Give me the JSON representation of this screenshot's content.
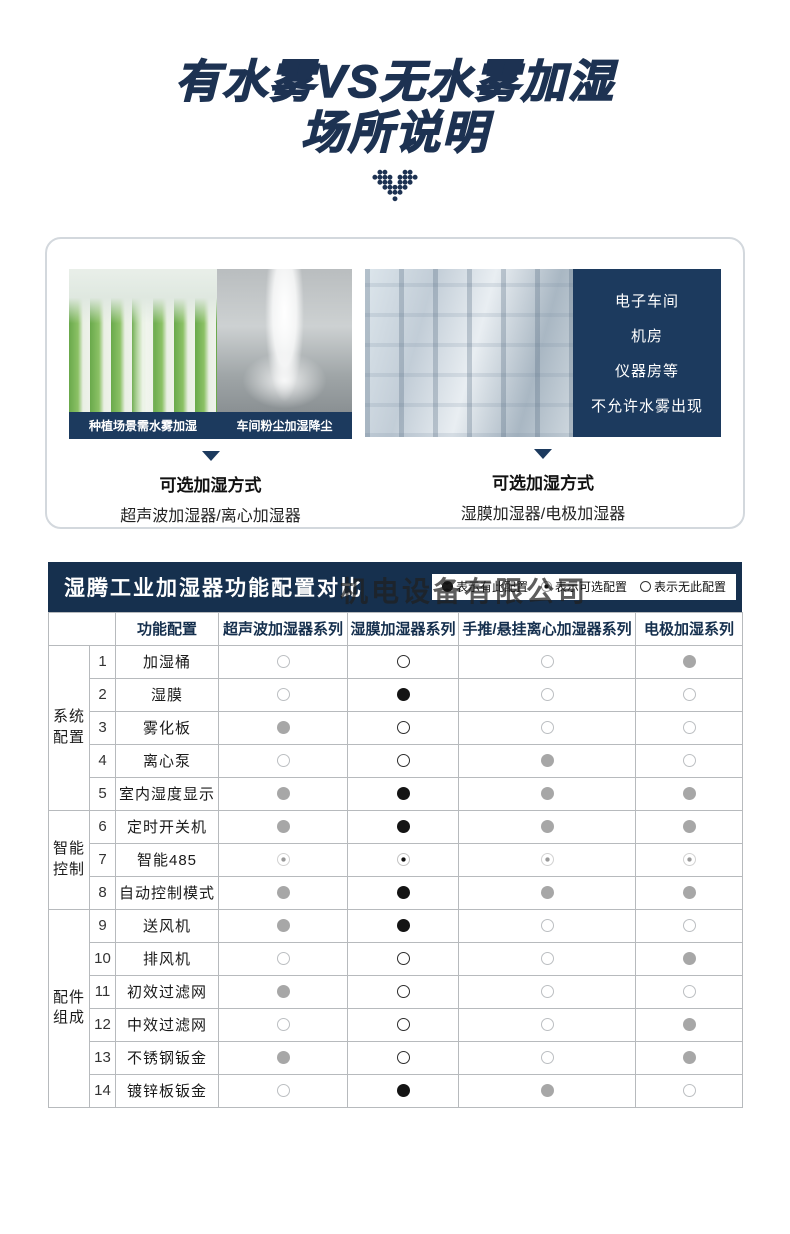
{
  "page": {
    "title_line1": "有水雾VS无水雾加湿",
    "title_line2": "场所说明"
  },
  "scenes": {
    "left": {
      "captions": [
        "种植场景需水雾加湿",
        "车间粉尘加湿降尘"
      ],
      "method_title": "可选加湿方式",
      "method_detail": "超声波加湿器/离心加湿器"
    },
    "right": {
      "panel_lines": [
        "电子车间",
        "机房",
        "仪器房等",
        "不允许水雾出现"
      ],
      "method_title": "可选加湿方式",
      "method_detail": "湿膜加湿器/电极加湿器"
    }
  },
  "watermark": "机电设备有限公司",
  "table": {
    "title": "湿腾工业加湿器功能配置对比",
    "legend": [
      {
        "symbol": "filled",
        "label": "表示有此配置"
      },
      {
        "symbol": "optional",
        "label": "表示可选配置"
      },
      {
        "symbol": "none",
        "label": "表示无此配置"
      }
    ],
    "feature_header": "功能配置",
    "columns": [
      "超声波加湿器系列",
      "湿膜加湿器系列",
      "手推/悬挂离心加湿器系列",
      "电极加湿系列"
    ],
    "groups": [
      {
        "label": "系统配置",
        "span": 5
      },
      {
        "label": "智能控制",
        "span": 3
      },
      {
        "label": "配件组成",
        "span": 6
      }
    ],
    "rows": [
      {
        "num": 1,
        "label": "加湿桶",
        "values": [
          "none",
          "none",
          "none",
          "filled"
        ]
      },
      {
        "num": 2,
        "label": "湿膜",
        "values": [
          "none",
          "filled",
          "none",
          "none"
        ]
      },
      {
        "num": 3,
        "label": "雾化板",
        "values": [
          "filled",
          "none",
          "none",
          "none"
        ]
      },
      {
        "num": 4,
        "label": "离心泵",
        "values": [
          "none",
          "none",
          "filled",
          "none"
        ]
      },
      {
        "num": 5,
        "label": "室内湿度显示",
        "values": [
          "filled",
          "filled",
          "filled",
          "filled"
        ]
      },
      {
        "num": 6,
        "label": "定时开关机",
        "values": [
          "filled",
          "filled",
          "filled",
          "filled"
        ]
      },
      {
        "num": 7,
        "label": "智能485",
        "values": [
          "optional",
          "optional",
          "optional",
          "optional"
        ]
      },
      {
        "num": 8,
        "label": "自动控制模式",
        "values": [
          "filled",
          "filled",
          "filled",
          "filled"
        ]
      },
      {
        "num": 9,
        "label": "送风机",
        "values": [
          "filled",
          "filled",
          "none",
          "none"
        ]
      },
      {
        "num": 10,
        "label": "排风机",
        "values": [
          "none",
          "none",
          "none",
          "filled"
        ]
      },
      {
        "num": 11,
        "label": "初效过滤网",
        "values": [
          "filled",
          "none",
          "none",
          "none"
        ]
      },
      {
        "num": 12,
        "label": "中效过滤网",
        "values": [
          "none",
          "none",
          "none",
          "filled"
        ]
      },
      {
        "num": 13,
        "label": "不锈钢钣金",
        "values": [
          "filled",
          "none",
          "none",
          "filled"
        ]
      },
      {
        "num": 14,
        "label": "镀锌板钣金",
        "values": [
          "none",
          "filled",
          "filled",
          "none"
        ]
      }
    ]
  },
  "colors": {
    "navy": "#1c3a5e",
    "table_bar": "#16304e",
    "title_text": "#1d3252",
    "dot_gray": "#a7a7a7",
    "dot_dark": "#141414"
  }
}
